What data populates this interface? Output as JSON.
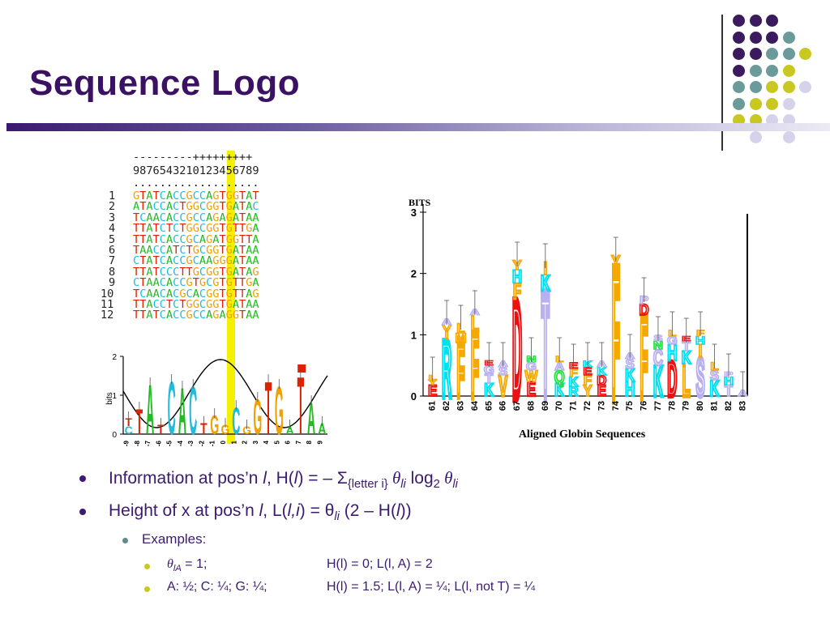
{
  "slide": {
    "title": "Sequence Logo"
  },
  "colors": {
    "title": "#3b1163",
    "A": "#22bb22",
    "C": "#22bbdd",
    "G": "#f0a000",
    "T": "#dd2200",
    "dot_purple": "#3b1a5e",
    "dot_teal": "#6b9a9a",
    "dot_yellow": "#c8c820",
    "dot_lavender": "#d5d3ea"
  },
  "alignment": {
    "header_signs": "---------+++++++++",
    "header_digits": "9876543210123456789",
    "header_dots": "...................",
    "rows": [
      {
        "num": "1",
        "seq": "GTATCACCGCCAGTGGTAT"
      },
      {
        "num": "2",
        "seq": "ATACCACTGGCGGTGATAC"
      },
      {
        "num": "3",
        "seq": "TCAACACCGCCAGAGATAA"
      },
      {
        "num": "4",
        "seq": "TTATCTCTGGCGGTGTTGA"
      },
      {
        "num": "5",
        "seq": "TTATCACCGCAGATGGTTA"
      },
      {
        "num": "6",
        "seq": "TAACCATCTGCGGTGATAA"
      },
      {
        "num": "7",
        "seq": "CTATCACCGCAAGGGATAA"
      },
      {
        "num": "8",
        "seq": "TTATCCCTTGCGGTGATAG"
      },
      {
        "num": "9",
        "seq": "CTAACACCGTGCGTGTTGA"
      },
      {
        "num": "10",
        "seq": "TCAACACGCACGGTGTTAG"
      },
      {
        "num": "11",
        "seq": "TTACCTCTGGCGGTGATAA"
      },
      {
        "num": "12",
        "seq": "TTATCACCGCCAGAGGTAA"
      }
    ]
  },
  "dna_logo": {
    "ylabel": "bits",
    "yticks": [
      "0",
      "1",
      "2"
    ],
    "xticks": [
      "-9",
      "-8",
      "-7",
      "-6",
      "-5",
      "-4",
      "-3",
      "-2",
      "-1",
      "0",
      "1",
      "2",
      "3",
      "4",
      "5",
      "6",
      "7",
      "8",
      "9"
    ]
  },
  "globin_logo": {
    "ylabel": "BITS",
    "yticks": [
      "0",
      "1",
      "2",
      "3"
    ],
    "xticks": [
      "61",
      "62",
      "63",
      "64",
      "65",
      "66",
      "67",
      "68",
      "69",
      "70",
      "71",
      "72",
      "73",
      "74",
      "75",
      "76",
      "77",
      "78",
      "79",
      "80",
      "81",
      "82",
      "83"
    ],
    "xlabel": "Aligned Globin Sequences",
    "main_letters": [
      "R",
      "F",
      "F",
      "K",
      "V",
      "D",
      "T",
      "E",
      "K",
      "Q",
      "R",
      "E",
      "D",
      "F",
      "K",
      "K",
      "D",
      "L",
      "S",
      "K",
      "F",
      "L",
      "T"
    ]
  },
  "bullets": {
    "b1": {
      "a": "Information at pos’n ",
      "l": "l",
      "b": ", H(",
      "l2": "l",
      "c": ") = – Σ",
      "sub": "{letter i}",
      "d": " θ",
      "sub2": "li",
      "e": " log",
      "sub3": "2",
      "f": " θ",
      "sub4": "li"
    },
    "b2": {
      "a": "Height of x at pos’n ",
      "l": "l",
      "b": ", L(",
      "li": "l,i",
      "c": ") = θ",
      "sub": "li",
      "d": " (2 – H(",
      "l2": "l",
      "e": "))"
    },
    "examples_label": "Examples:",
    "ex1_left": "θ",
    "ex1_sub": "lA",
    "ex1_rest": " = 1;",
    "ex1_right": "H(l) = 0;    L(l, A) = 2",
    "ex2_left": "A: ½;  C: ¼;  G: ¼;",
    "ex2_right": "H(l) = 1.5; L(l, A) = ¼;  L(l, not T) = ¼"
  }
}
